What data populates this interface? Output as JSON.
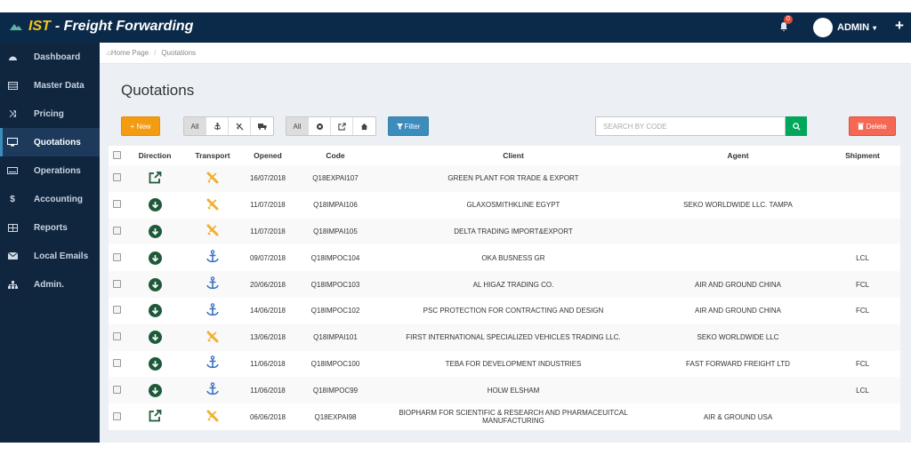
{
  "header": {
    "brand_ist": "IST",
    "brand_sub": "- Freight Forwarding",
    "notifications": "0",
    "user": "ADMIN"
  },
  "sidebar": {
    "items": [
      {
        "label": "Dashboard",
        "icon": "dashboard-icon"
      },
      {
        "label": "Master Data",
        "icon": "table-icon"
      },
      {
        "label": "Pricing",
        "icon": "shuffle-icon"
      },
      {
        "label": "Quotations",
        "icon": "monitor-icon",
        "active": true
      },
      {
        "label": "Operations",
        "icon": "keyboard-icon"
      },
      {
        "label": "Accounting",
        "icon": "dollar-icon"
      },
      {
        "label": "Reports",
        "icon": "grid-icon"
      },
      {
        "label": "Local Emails",
        "icon": "envelope-icon"
      },
      {
        "label": "Admin.",
        "icon": "sitemap-icon"
      }
    ]
  },
  "breadcrumb": {
    "home": "Home Page",
    "current": "Quotations"
  },
  "page_title": "Quotations",
  "toolbar": {
    "new_label": "+ New",
    "transport_filter": {
      "all": "All"
    },
    "direction_filter": {
      "all": "All"
    },
    "filter_label": "Filter",
    "search_placeholder": "SEARCH BY CODE",
    "delete_label": "Delete"
  },
  "table": {
    "headers": [
      "Direction",
      "Transport",
      "Opened",
      "Code",
      "Client",
      "Agent",
      "Shipment"
    ],
    "rows": [
      {
        "direction": "export",
        "transport": "air",
        "opened": "16/07/2018",
        "code": "Q18EXPAI107",
        "client": "GREEN PLANT FOR TRADE & EXPORT",
        "agent": "",
        "shipment": ""
      },
      {
        "direction": "import",
        "transport": "air",
        "opened": "11/07/2018",
        "code": "Q18IMPAI106",
        "client": "GLAXOSMITHKLINE EGYPT",
        "agent": "SEKO WORLDWIDE LLC. TAMPA",
        "shipment": ""
      },
      {
        "direction": "import",
        "transport": "air",
        "opened": "11/07/2018",
        "code": "Q18IMPAI105",
        "client": "DELTA TRADING IMPORT&EXPORT",
        "agent": "",
        "shipment": ""
      },
      {
        "direction": "import",
        "transport": "sea",
        "opened": "09/07/2018",
        "code": "Q18IMPOC104",
        "client": "OKA BUSNESS GR",
        "agent": "",
        "shipment": "LCL"
      },
      {
        "direction": "import",
        "transport": "sea",
        "opened": "20/06/2018",
        "code": "Q18IMPOC103",
        "client": "AL HIGAZ TRADING CO.",
        "agent": "AIR AND GROUND CHINA",
        "shipment": "FCL"
      },
      {
        "direction": "import",
        "transport": "sea",
        "opened": "14/06/2018",
        "code": "Q18IMPOC102",
        "client": "PSC PROTECTION FOR CONTRACTING AND DESIGN",
        "agent": "AIR AND GROUND CHINA",
        "shipment": "FCL"
      },
      {
        "direction": "import",
        "transport": "air",
        "opened": "13/06/2018",
        "code": "Q18IMPAI101",
        "client": "FIRST INTERNATIONAL SPECIALIZED VEHICLES TRADING LLC.",
        "agent": "SEKO WORLDWIDE LLC",
        "shipment": ""
      },
      {
        "direction": "import",
        "transport": "sea",
        "opened": "11/06/2018",
        "code": "Q18IMPOC100",
        "client": "TEBA FOR DEVELOPMENT INDUSTRIES",
        "agent": "FAST FORWARD FREIGHT LTD",
        "shipment": "FCL"
      },
      {
        "direction": "import",
        "transport": "sea",
        "opened": "11/06/2018",
        "code": "Q18IMPOC99",
        "client": "HOLW ELSHAM",
        "agent": "",
        "shipment": "LCL"
      },
      {
        "direction": "export",
        "transport": "air",
        "opened": "06/06/2018",
        "code": "Q18EXPAI98",
        "client": "BIOPHARM FOR SCIENTIFIC & RESEARCH AND PHARMACEUITCAL MANUFACTURING",
        "agent": "AIR & GROUND USA",
        "shipment": ""
      }
    ]
  },
  "colors": {
    "topbar": "#0b2a4a",
    "sidebar": "#10263f",
    "brand_accent": "#f5c518",
    "new_button": "#f39c12",
    "filter_button": "#3c8dbc",
    "search_button": "#00a65a",
    "delete_button": "#f56954",
    "air_icon": "#f0b030",
    "sea_icon": "#3a6fc4",
    "direction_icon": "#1e5a3a"
  }
}
